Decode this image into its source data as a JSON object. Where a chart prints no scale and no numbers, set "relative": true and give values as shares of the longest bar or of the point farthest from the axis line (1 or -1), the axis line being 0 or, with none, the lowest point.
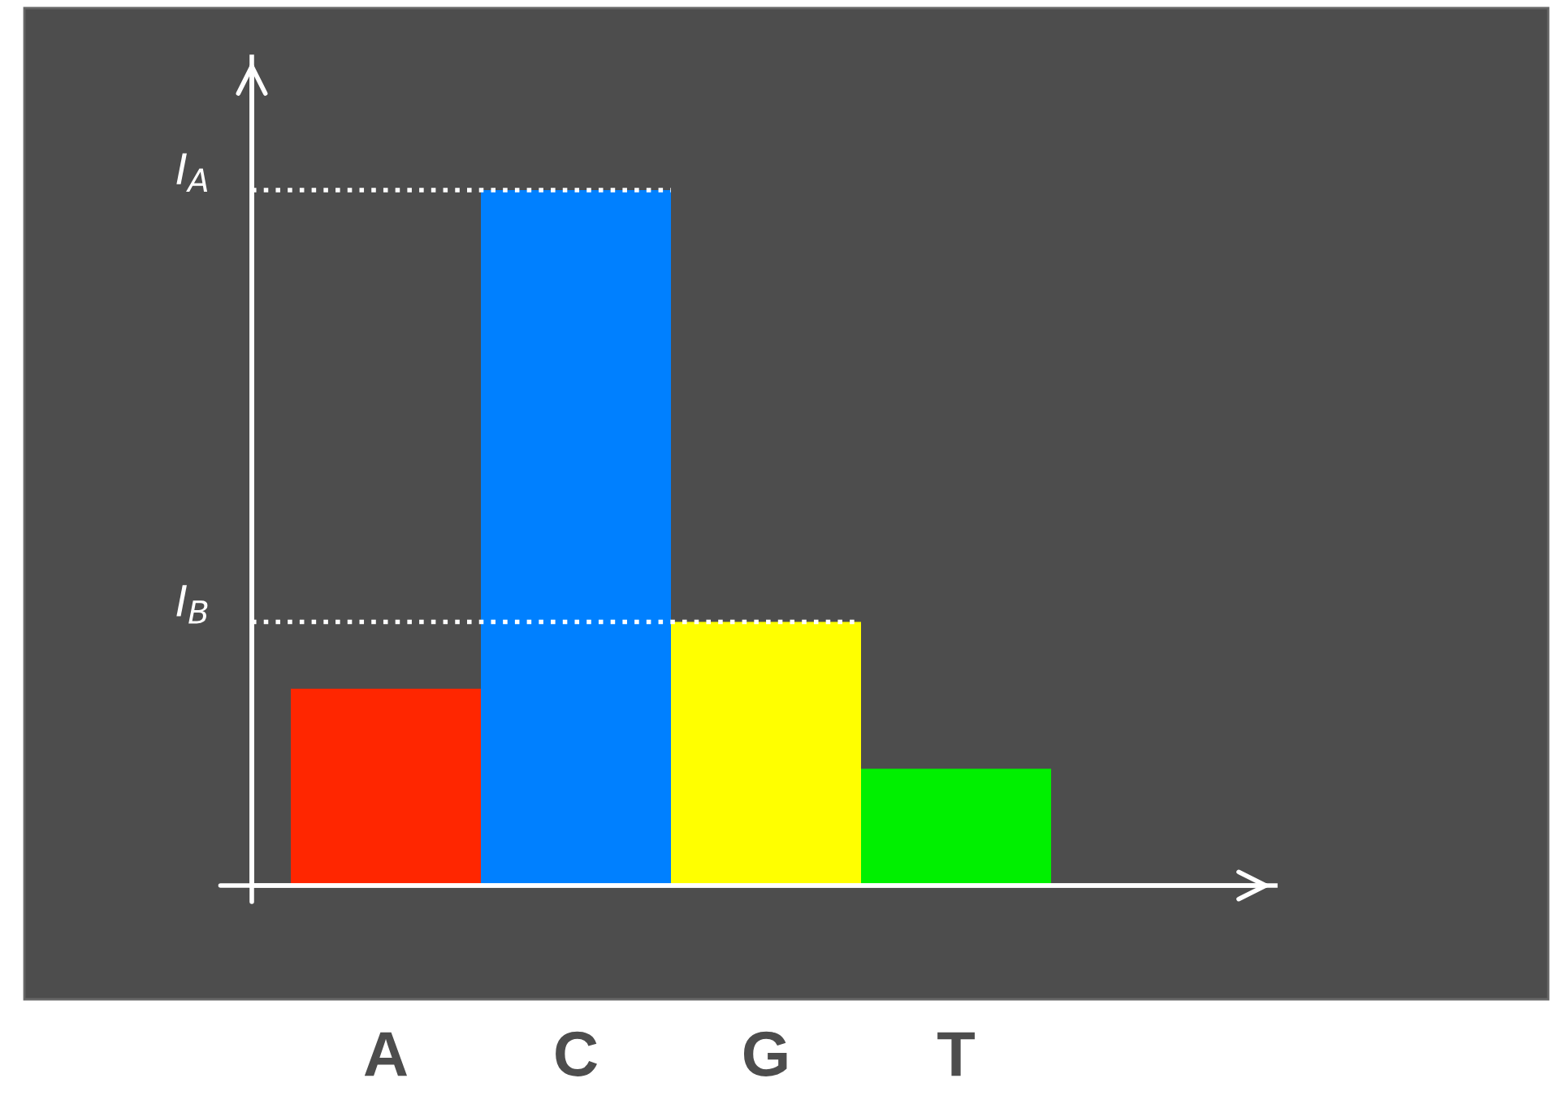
{
  "chart_data": {
    "type": "bar",
    "relative": true,
    "categories": [
      "A",
      "C",
      "G",
      "T"
    ],
    "values": [
      0.283,
      1,
      0.379,
      0.168
    ],
    "colors": [
      "#ff2600",
      "#0080ff",
      "#ffff00",
      "#00f000"
    ],
    "ref_lines": [
      {
        "axis": "y",
        "value": 1,
        "label": "I$_{A}$",
        "color": "#ffffff",
        "line_style": "dotted"
      },
      {
        "axis": "y",
        "value": 0.379,
        "label": "I$_{B}$",
        "color": "#ffffff",
        "line_style": "dotted"
      }
    ],
    "grid": false,
    "legend": false
  }
}
